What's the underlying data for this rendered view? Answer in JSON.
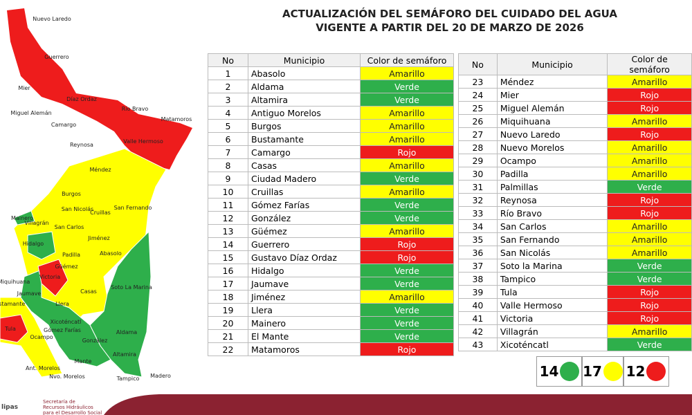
{
  "header": {
    "title": [
      "ACTUALIZACIÓN DEL SEMÁFORO DEL CUIDADO DEL AGUA",
      "VIGENTE A PARTIR DEL 20 DE MARZO DE 2026"
    ]
  },
  "status_colors": {
    "Amarillo": "#ffff00",
    "Verde": "#2eaf4b",
    "Rojo": "#ee1c1c"
  },
  "tables": [
    {
      "columns": [
        "No",
        "Municipio",
        "Color de semáforo"
      ],
      "rows": [
        [
          1,
          "Abasolo",
          "Amarillo"
        ],
        [
          2,
          "Aldama",
          "Verde"
        ],
        [
          3,
          "Altamira",
          "Verde"
        ],
        [
          4,
          "Antiguo Morelos",
          "Amarillo"
        ],
        [
          5,
          "Burgos",
          "Amarillo"
        ],
        [
          6,
          "Bustamante",
          "Amarillo"
        ],
        [
          7,
          "Camargo",
          "Rojo"
        ],
        [
          8,
          "Casas",
          "Amarillo"
        ],
        [
          9,
          "Ciudad Madero",
          "Verde"
        ],
        [
          10,
          "Cruillas",
          "Amarillo"
        ],
        [
          11,
          "Gómez Farías",
          "Verde"
        ],
        [
          12,
          "González",
          "Verde"
        ],
        [
          13,
          "Güémez",
          "Amarillo"
        ],
        [
          14,
          "Guerrero",
          "Rojo"
        ],
        [
          15,
          "Gustavo Díaz Ordaz",
          "Rojo"
        ],
        [
          16,
          "Hidalgo",
          "Verde"
        ],
        [
          17,
          "Jaumave",
          "Verde"
        ],
        [
          18,
          "Jiménez",
          "Amarillo"
        ],
        [
          19,
          "Llera",
          "Verde"
        ],
        [
          20,
          "Mainero",
          "Verde"
        ],
        [
          21,
          "El Mante",
          "Verde"
        ],
        [
          22,
          "Matamoros",
          "Rojo"
        ]
      ]
    },
    {
      "columns": [
        "No",
        "Municipio",
        "Color de semáforo"
      ],
      "rows": [
        [
          23,
          "Méndez",
          "Amarillo"
        ],
        [
          24,
          "Mier",
          "Rojo"
        ],
        [
          25,
          "Miguel Alemán",
          "Rojo"
        ],
        [
          26,
          "Miquihuana",
          "Amarillo"
        ],
        [
          27,
          "Nuevo Laredo",
          "Rojo"
        ],
        [
          28,
          "Nuevo Morelos",
          "Amarillo"
        ],
        [
          29,
          "Ocampo",
          "Amarillo"
        ],
        [
          30,
          "Padilla",
          "Amarillo"
        ],
        [
          31,
          "Palmillas",
          "Verde"
        ],
        [
          32,
          "Reynosa",
          "Rojo"
        ],
        [
          33,
          "Río Bravo",
          "Rojo"
        ],
        [
          34,
          "San Carlos",
          "Amarillo"
        ],
        [
          35,
          "San Fernando",
          "Amarillo"
        ],
        [
          36,
          "San Nicolás",
          "Amarillo"
        ],
        [
          37,
          "Soto la Marina",
          "Verde"
        ],
        [
          38,
          "Tampico",
          "Verde"
        ],
        [
          39,
          "Tula",
          "Rojo"
        ],
        [
          40,
          "Valle Hermoso",
          "Rojo"
        ],
        [
          41,
          "Victoria",
          "Rojo"
        ],
        [
          42,
          "Villagrán",
          "Amarillo"
        ],
        [
          43,
          "Xicoténcatl",
          "Verde"
        ]
      ]
    }
  ],
  "summary": [
    {
      "count": 14,
      "color": "#2eaf4b"
    },
    {
      "count": 17,
      "color": "#ffff00"
    },
    {
      "count": 12,
      "color": "#ee1c1c"
    }
  ],
  "map_labels": [
    "Nuevo Laredo",
    "Guerrero",
    "Mier",
    "Díaz Ordaz",
    "Miguel Alemán",
    "Río Bravo",
    "Matamoros",
    "Camargo",
    "Reynosa",
    "Valle Hermoso",
    "Méndez",
    "Burgos",
    "San Nicolás",
    "Cruillas",
    "San Fernando",
    "Mainero",
    "Villagrán",
    "San Carlos",
    "Hidalgo",
    "Jiménez",
    "Padilla",
    "Abasolo",
    "Güémez",
    "Victoria",
    "Soto La Marina",
    "Miquihuana",
    "Jaumave",
    "Casas",
    "Llera",
    "Bustamante",
    "Xicoténcatl",
    "Tula",
    "Gómez Farías",
    "Ocampo",
    "Aldama",
    "González",
    "Altamira",
    "Mante",
    "Ant. Morelos",
    "Nvo. Morelos",
    "Tampico",
    "Madero"
  ],
  "footer": {
    "state": "lipas",
    "org": [
      "Secretaría de",
      "Recursos Hidráulicos",
      "para el Desarrollo Social"
    ]
  }
}
